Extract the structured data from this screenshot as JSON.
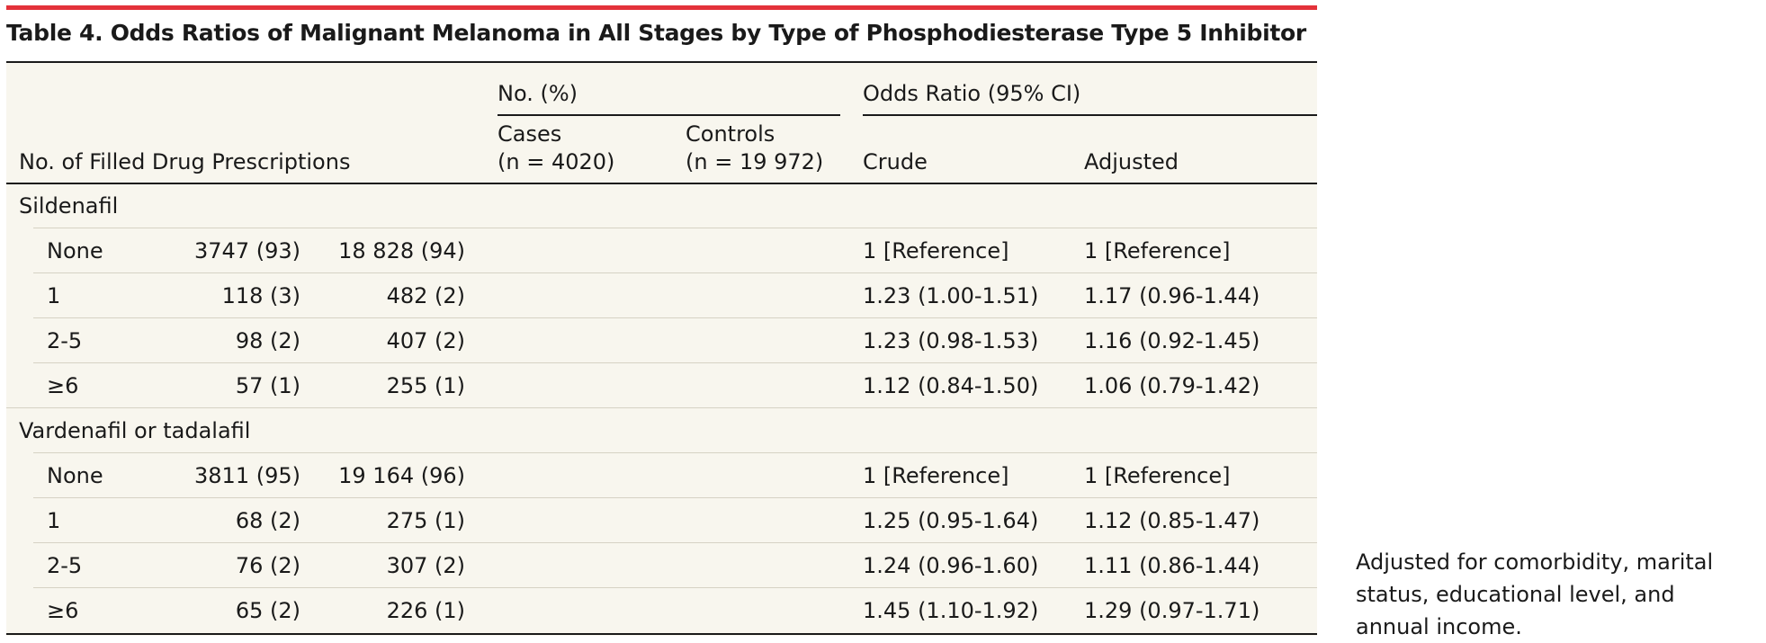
{
  "table": {
    "title": "Table 4. Odds Ratios of Malignant Melanoma in All Stages by Type of Phosphodiesterase Type 5 Inhibitor",
    "header": {
      "row_label": "No. of Filled Drug Prescriptions",
      "group_no_pct": "No. (%)",
      "cases_line1": "Cases",
      "cases_line2": "(n = 4020)",
      "controls_line1": "Controls",
      "controls_line2": "(n = 19 972)",
      "group_or": "Odds Ratio (95% CI)",
      "crude": "Crude",
      "adjusted": "Adjusted"
    },
    "rows": [
      {
        "label": "Sildenafil",
        "cases": "",
        "controls": "",
        "crude": "",
        "adjusted": ""
      },
      {
        "label": "None",
        "cases": "3747 (93)",
        "controls": "18 828 (94)",
        "crude": "1 [Reference]",
        "adjusted": "1 [Reference]"
      },
      {
        "label": "1",
        "cases": "118 (3)",
        "controls": "482 (2)",
        "crude": "1.23 (1.00-1.51)",
        "adjusted": "1.17 (0.96-1.44)"
      },
      {
        "label": "2-5",
        "cases": "98 (2)",
        "controls": "407 (2)",
        "crude": "1.23 (0.98-1.53)",
        "adjusted": "1.16 (0.92-1.45)"
      },
      {
        "label": "≥6",
        "cases": "57 (1)",
        "controls": "255 (1)",
        "crude": "1.12 (0.84-1.50)",
        "adjusted": "1.06 (0.79-1.42)"
      },
      {
        "label": "Vardenafil or tadalafil",
        "cases": "",
        "controls": "",
        "crude": "",
        "adjusted": ""
      },
      {
        "label": "None",
        "cases": "3811 (95)",
        "controls": "19 164 (96)",
        "crude": "1 [Reference]",
        "adjusted": "1 [Reference]"
      },
      {
        "label": "1",
        "cases": "68 (2)",
        "controls": "275 (1)",
        "crude": "1.25 (0.95-1.64)",
        "adjusted": "1.12 (0.85-1.47)"
      },
      {
        "label": "2-5",
        "cases": "76 (2)",
        "controls": "307 (2)",
        "crude": "1.24 (0.96-1.60)",
        "adjusted": "1.11 (0.86-1.44)"
      },
      {
        "label": "≥6",
        "cases": "65 (2)",
        "controls": "226 (1)",
        "crude": "1.45 (1.10-1.92)",
        "adjusted": "1.29 (0.97-1.71)"
      }
    ],
    "footnote": "Adjusted for comorbidity, marital status, educational level, and annual income."
  }
}
